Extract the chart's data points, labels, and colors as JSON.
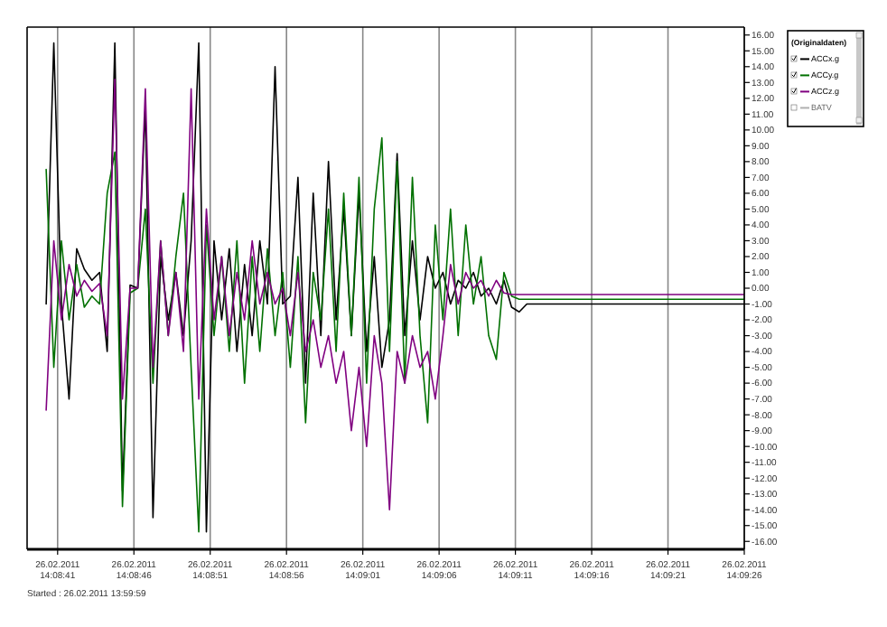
{
  "chart_data": {
    "type": "line",
    "legend_title": "(Originaldaten)",
    "legend": "right",
    "grid": "x",
    "line_style": "solid",
    "annotations": [
      "Started : 26.02.2011 13:59:59"
    ],
    "xlim": [
      "2011-02-26T14:08:39",
      "2011-02-26T14:09:26"
    ],
    "xticks": [
      {
        "value": "2011-02-26T14:08:41",
        "label": "26.02.2011\n14:08:41"
      },
      {
        "value": "2011-02-26T14:08:46",
        "label": "26.02.2011\n14:08:46"
      },
      {
        "value": "2011-02-26T14:08:51",
        "label": "26.02.2011\n14:08:51"
      },
      {
        "value": "2011-02-26T14:08:56",
        "label": "26.02.2011\n14:08:56"
      },
      {
        "value": "2011-02-26T14:09:01",
        "label": "26.02.2011\n14:09:01"
      },
      {
        "value": "2011-02-26T14:09:06",
        "label": "26.02.2011\n14:09:06"
      },
      {
        "value": "2011-02-26T14:09:11",
        "label": "26.02.2011\n14:09:11"
      },
      {
        "value": "2011-02-26T14:09:16",
        "label": "26.02.2011\n14:09:16"
      },
      {
        "value": "2011-02-26T14:09:21",
        "label": "26.02.2011\n14:09:21"
      },
      {
        "value": "2011-02-26T14:09:26",
        "label": "26.02.2011\n14:09:26"
      }
    ],
    "ylim": [
      -16.5,
      16.5
    ],
    "yticks": [
      {
        "value": 16,
        "label": "16.00"
      },
      {
        "value": 15,
        "label": "15.00"
      },
      {
        "value": 14,
        "label": "14.00"
      },
      {
        "value": 13,
        "label": "13.00"
      },
      {
        "value": 12,
        "label": "12.00"
      },
      {
        "value": 11,
        "label": "11.00"
      },
      {
        "value": 10,
        "label": "10.00"
      },
      {
        "value": 9,
        "label": "9.00"
      },
      {
        "value": 8,
        "label": "8.00"
      },
      {
        "value": 7,
        "label": "7.00"
      },
      {
        "value": 6,
        "label": "6.00"
      },
      {
        "value": 5,
        "label": "5.00"
      },
      {
        "value": 4,
        "label": "4.00"
      },
      {
        "value": 3,
        "label": "3.00"
      },
      {
        "value": 2,
        "label": "2.00"
      },
      {
        "value": 1,
        "label": "1.00"
      },
      {
        "value": 0,
        "label": "0.00"
      },
      {
        "value": -1,
        "label": "-1.00"
      },
      {
        "value": -2,
        "label": "-2.00"
      },
      {
        "value": -3,
        "label": "-3.00"
      },
      {
        "value": -4,
        "label": "-4.00"
      },
      {
        "value": -5,
        "label": "-5.00"
      },
      {
        "value": -6,
        "label": "-6.00"
      },
      {
        "value": -7,
        "label": "-7.00"
      },
      {
        "value": -8,
        "label": "-8.00"
      },
      {
        "value": -9,
        "label": "-9.00"
      },
      {
        "value": -10,
        "label": "-10.00"
      },
      {
        "value": -11,
        "label": "-11.00"
      },
      {
        "value": -12,
        "label": "-12.00"
      },
      {
        "value": -13,
        "label": "-13.00"
      },
      {
        "value": -14,
        "label": "-14.00"
      },
      {
        "value": -15,
        "label": "-15.00"
      },
      {
        "value": -16,
        "label": "-16.00"
      }
    ],
    "x": [
      "2011-02-26T14:08:40.25",
      "2011-02-26T14:08:40.75",
      "2011-02-26T14:08:41.25",
      "2011-02-26T14:08:41.75",
      "2011-02-26T14:08:42.25",
      "2011-02-26T14:08:42.75",
      "2011-02-26T14:08:43.25",
      "2011-02-26T14:08:43.75",
      "2011-02-26T14:08:44.25",
      "2011-02-26T14:08:44.75",
      "2011-02-26T14:08:45.25",
      "2011-02-26T14:08:45.75",
      "2011-02-26T14:08:46.25",
      "2011-02-26T14:08:46.75",
      "2011-02-26T14:08:47.25",
      "2011-02-26T14:08:47.75",
      "2011-02-26T14:08:48.25",
      "2011-02-26T14:08:48.75",
      "2011-02-26T14:08:49.25",
      "2011-02-26T14:08:49.75",
      "2011-02-26T14:08:50.25",
      "2011-02-26T14:08:50.75",
      "2011-02-26T14:08:51.25",
      "2011-02-26T14:08:51.75",
      "2011-02-26T14:08:52.25",
      "2011-02-26T14:08:52.75",
      "2011-02-26T14:08:53.25",
      "2011-02-26T14:08:53.75",
      "2011-02-26T14:08:54.25",
      "2011-02-26T14:08:54.75",
      "2011-02-26T14:08:55.25",
      "2011-02-26T14:08:55.75",
      "2011-02-26T14:08:56.25",
      "2011-02-26T14:08:56.75",
      "2011-02-26T14:08:57.25",
      "2011-02-26T14:08:57.75",
      "2011-02-26T14:08:58.25",
      "2011-02-26T14:08:58.75",
      "2011-02-26T14:08:59.25",
      "2011-02-26T14:08:59.75",
      "2011-02-26T14:09:00.25",
      "2011-02-26T14:09:00.75",
      "2011-02-26T14:09:01.25",
      "2011-02-26T14:09:01.75",
      "2011-02-26T14:09:02.25",
      "2011-02-26T14:09:02.75",
      "2011-02-26T14:09:03.25",
      "2011-02-26T14:09:03.75",
      "2011-02-26T14:09:04.25",
      "2011-02-26T14:09:04.75",
      "2011-02-26T14:09:05.25",
      "2011-02-26T14:09:05.75",
      "2011-02-26T14:09:06.25",
      "2011-02-26T14:09:06.75",
      "2011-02-26T14:09:07.25",
      "2011-02-26T14:09:07.75",
      "2011-02-26T14:09:08.25",
      "2011-02-26T14:09:08.75",
      "2011-02-26T14:09:09.25",
      "2011-02-26T14:09:09.75",
      "2011-02-26T14:09:10.25",
      "2011-02-26T14:09:10.75",
      "2011-02-26T14:09:11.25",
      "2011-02-26T14:09:11.75",
      "2011-02-26T14:09:12.25",
      "2011-02-26T14:09:12.75",
      "2011-02-26T14:09:13.25",
      "2011-02-26T14:09:13.75",
      "2011-02-26T14:09:14.25",
      "2011-02-26T14:09:20.0",
      "2011-02-26T14:09:26.0"
    ],
    "series": [
      {
        "name": "ACCx.g",
        "color": "#000000",
        "values": [
          -1,
          15.5,
          -1,
          -7,
          2.5,
          1.2,
          0.5,
          1,
          -4,
          15.5,
          -12.8,
          0.2,
          0,
          11.5,
          -14.5,
          2,
          -2,
          1,
          -3,
          3,
          15.5,
          -15.4,
          3,
          -2,
          2.5,
          -4,
          1.5,
          -3,
          3,
          -1,
          14,
          -1,
          -0.5,
          7,
          -6,
          6,
          -3,
          8,
          -2,
          5,
          -3,
          6,
          -4,
          2,
          -5,
          -2,
          8.5,
          -3,
          3,
          -2,
          2,
          0,
          1,
          -1,
          0.5,
          0,
          1,
          -0.5,
          0,
          -1,
          0.5,
          -1.2,
          -1.5,
          -1,
          -1,
          -1,
          -1,
          -1,
          -1,
          -1,
          -1
        ]
      },
      {
        "name": "ACCy.g",
        "color": "#007000",
        "values": [
          7.5,
          -5,
          3,
          -2,
          1.5,
          -1.2,
          -0.5,
          -1,
          6,
          8.6,
          -13.8,
          -0.3,
          0,
          5,
          -6,
          3,
          -3,
          2,
          6,
          -5,
          -15.4,
          4,
          -3,
          2,
          -4,
          3,
          -6,
          2,
          -4,
          2.5,
          -3,
          1,
          -5,
          2,
          -8.5,
          1,
          -2,
          5,
          -4,
          6,
          -3,
          7,
          -6,
          5,
          9.5,
          -4,
          8,
          -6,
          7,
          -3,
          -8.5,
          4,
          -2,
          5,
          -3,
          4,
          -1,
          2,
          -3,
          -4.5,
          1,
          -0.5,
          -0.7,
          -0.7,
          -0.7,
          -0.7,
          -0.7,
          -0.7,
          -0.7,
          -0.7,
          -0.7
        ]
      },
      {
        "name": "ACCz.g",
        "color": "#800080",
        "values": [
          -7.7,
          3,
          -2,
          1.5,
          -0.5,
          0.5,
          -0.2,
          0.3,
          -3,
          13.2,
          -7,
          0,
          0,
          12.6,
          -5,
          3,
          -3,
          1,
          -4,
          12.6,
          -7,
          5,
          -2,
          2,
          -3,
          1,
          -2,
          3,
          -1,
          1,
          -1,
          0,
          -3,
          1,
          -4,
          -2,
          -5,
          -3,
          -6,
          -4,
          -9,
          -5,
          -10,
          -3,
          -6,
          -14,
          -4,
          -6,
          -3,
          -5,
          -4,
          -7,
          -3,
          1.5,
          -1,
          1,
          0,
          0.5,
          -0.5,
          0.5,
          -0.3,
          -0.4,
          -0.4,
          -0.4,
          -0.4,
          -0.4,
          -0.4,
          -0.4,
          -0.4,
          -0.4,
          -0.4
        ]
      },
      {
        "name": "BATV",
        "color": "#b0b0b0",
        "values": [
          null,
          null,
          null,
          null,
          null,
          null,
          null,
          null,
          null,
          null,
          null,
          null,
          null,
          null,
          null,
          null,
          null,
          null,
          null,
          null,
          null,
          null,
          null,
          null,
          null,
          null,
          null,
          null,
          null,
          null,
          null,
          null,
          null,
          null,
          null,
          null,
          null,
          null,
          null,
          null,
          null,
          null,
          null,
          null,
          null,
          null,
          null,
          null,
          null,
          null,
          null,
          null,
          null,
          null,
          null,
          null,
          null,
          null,
          null,
          null,
          null,
          null,
          null,
          null,
          null,
          null,
          null,
          null,
          null,
          null,
          null
        ]
      }
    ]
  }
}
